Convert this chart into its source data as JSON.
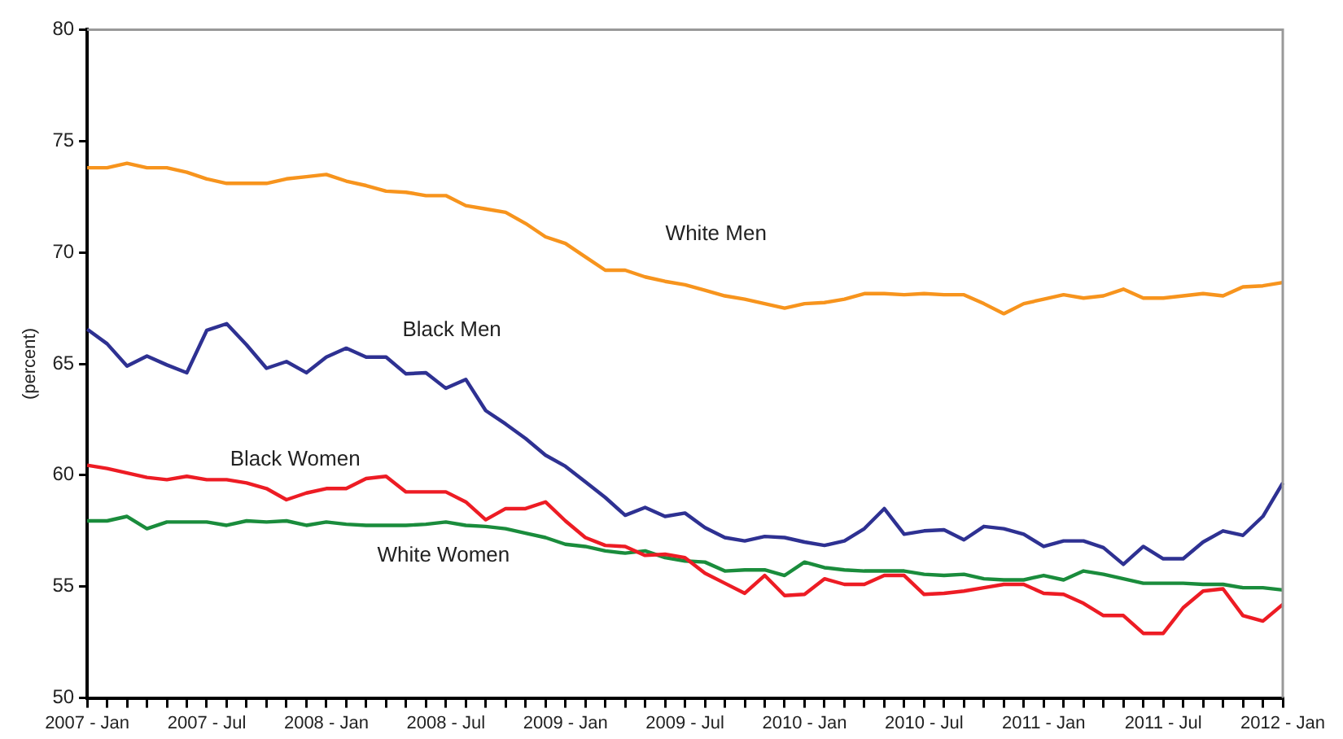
{
  "chart_data": {
    "type": "line",
    "ylabel": "(percent)",
    "categories": [
      "2007 - Jan",
      null,
      null,
      null,
      null,
      null,
      "2007 - Jul",
      null,
      null,
      null,
      null,
      null,
      "2008 - Jan",
      null,
      null,
      null,
      null,
      null,
      "2008 - Jul",
      null,
      null,
      null,
      null,
      null,
      "2009 - Jan",
      null,
      null,
      null,
      null,
      null,
      "2009 - Jul",
      null,
      null,
      null,
      null,
      null,
      "2010 - Jan",
      null,
      null,
      null,
      null,
      null,
      "2010 - Jul",
      null,
      null,
      null,
      null,
      null,
      "2011 - Jan",
      null,
      null,
      null,
      null,
      null,
      "2011 - Jul",
      null,
      null,
      null,
      null,
      null,
      "2012 - Jan"
    ],
    "ylim": [
      50,
      80
    ],
    "yticks": [
      50,
      55,
      60,
      65,
      70,
      75,
      80
    ],
    "grid": false,
    "legend": false,
    "marker": "none",
    "line_style": "solid",
    "series": [
      {
        "name": "White Men",
        "color": "#f7941d",
        "values": [
          73.8,
          73.8,
          74.0,
          73.8,
          73.8,
          73.6,
          73.3,
          73.1,
          73.1,
          73.1,
          73.3,
          73.4,
          73.5,
          73.2,
          73.0,
          72.75,
          72.7,
          72.55,
          72.55,
          72.1,
          71.95,
          71.8,
          71.3,
          70.7,
          70.4,
          69.8,
          69.2,
          69.2,
          68.9,
          68.7,
          68.55,
          68.3,
          68.05,
          67.9,
          67.7,
          67.5,
          67.7,
          67.75,
          67.9,
          68.15,
          68.15,
          68.1,
          68.15,
          68.1,
          68.1,
          67.7,
          67.25,
          67.7,
          67.9,
          68.1,
          67.95,
          68.05,
          68.35,
          67.95,
          67.95,
          68.05,
          68.15,
          68.05,
          68.45,
          68.5,
          68.65
        ]
      },
      {
        "name": "Black Men",
        "color": "#2e3192",
        "values": [
          66.55,
          65.9,
          64.9,
          65.35,
          64.95,
          64.6,
          66.5,
          66.8,
          65.85,
          64.8,
          65.1,
          64.6,
          65.3,
          65.7,
          65.3,
          65.3,
          64.55,
          64.6,
          63.9,
          64.3,
          62.9,
          62.3,
          61.65,
          60.9,
          60.4,
          59.7,
          59.0,
          58.2,
          58.55,
          58.15,
          58.3,
          57.65,
          57.2,
          57.05,
          57.25,
          57.2,
          57.0,
          56.85,
          57.05,
          57.6,
          58.5,
          57.35,
          57.5,
          57.55,
          57.1,
          57.7,
          57.6,
          57.35,
          56.8,
          57.05,
          57.05,
          56.75,
          56.0,
          56.8,
          56.25,
          56.25,
          57.0,
          57.5,
          57.3,
          58.15,
          59.65
        ]
      },
      {
        "name": "Black Women",
        "color": "#ed1c24",
        "values": [
          60.45,
          60.3,
          60.1,
          59.9,
          59.8,
          59.95,
          59.8,
          59.8,
          59.65,
          59.4,
          58.9,
          59.2,
          59.4,
          59.4,
          59.85,
          59.95,
          59.25,
          59.25,
          59.25,
          58.8,
          58.0,
          58.5,
          58.5,
          58.8,
          57.95,
          57.2,
          56.85,
          56.8,
          56.4,
          56.45,
          56.3,
          55.6,
          55.15,
          54.7,
          55.5,
          54.6,
          54.65,
          55.35,
          55.1,
          55.1,
          55.5,
          55.5,
          54.65,
          54.7,
          54.8,
          54.95,
          55.1,
          55.1,
          54.7,
          54.65,
          54.25,
          53.7,
          53.7,
          52.9,
          52.9,
          54.05,
          54.8,
          54.9,
          53.7,
          53.45,
          54.2
        ]
      },
      {
        "name": "White Women",
        "color": "#1a8c3c",
        "values": [
          57.95,
          57.95,
          58.15,
          57.6,
          57.9,
          57.9,
          57.9,
          57.75,
          57.95,
          57.9,
          57.95,
          57.75,
          57.9,
          57.8,
          57.75,
          57.75,
          57.75,
          57.8,
          57.9,
          57.75,
          57.7,
          57.6,
          57.4,
          57.2,
          56.9,
          56.8,
          56.6,
          56.5,
          56.6,
          56.3,
          56.15,
          56.1,
          55.7,
          55.75,
          55.75,
          55.5,
          56.1,
          55.85,
          55.75,
          55.7,
          55.7,
          55.7,
          55.55,
          55.5,
          55.55,
          55.35,
          55.3,
          55.3,
          55.5,
          55.3,
          55.7,
          55.55,
          55.35,
          55.15,
          55.15,
          55.15,
          55.1,
          55.1,
          54.95,
          54.95,
          54.85
        ]
      }
    ]
  }
}
